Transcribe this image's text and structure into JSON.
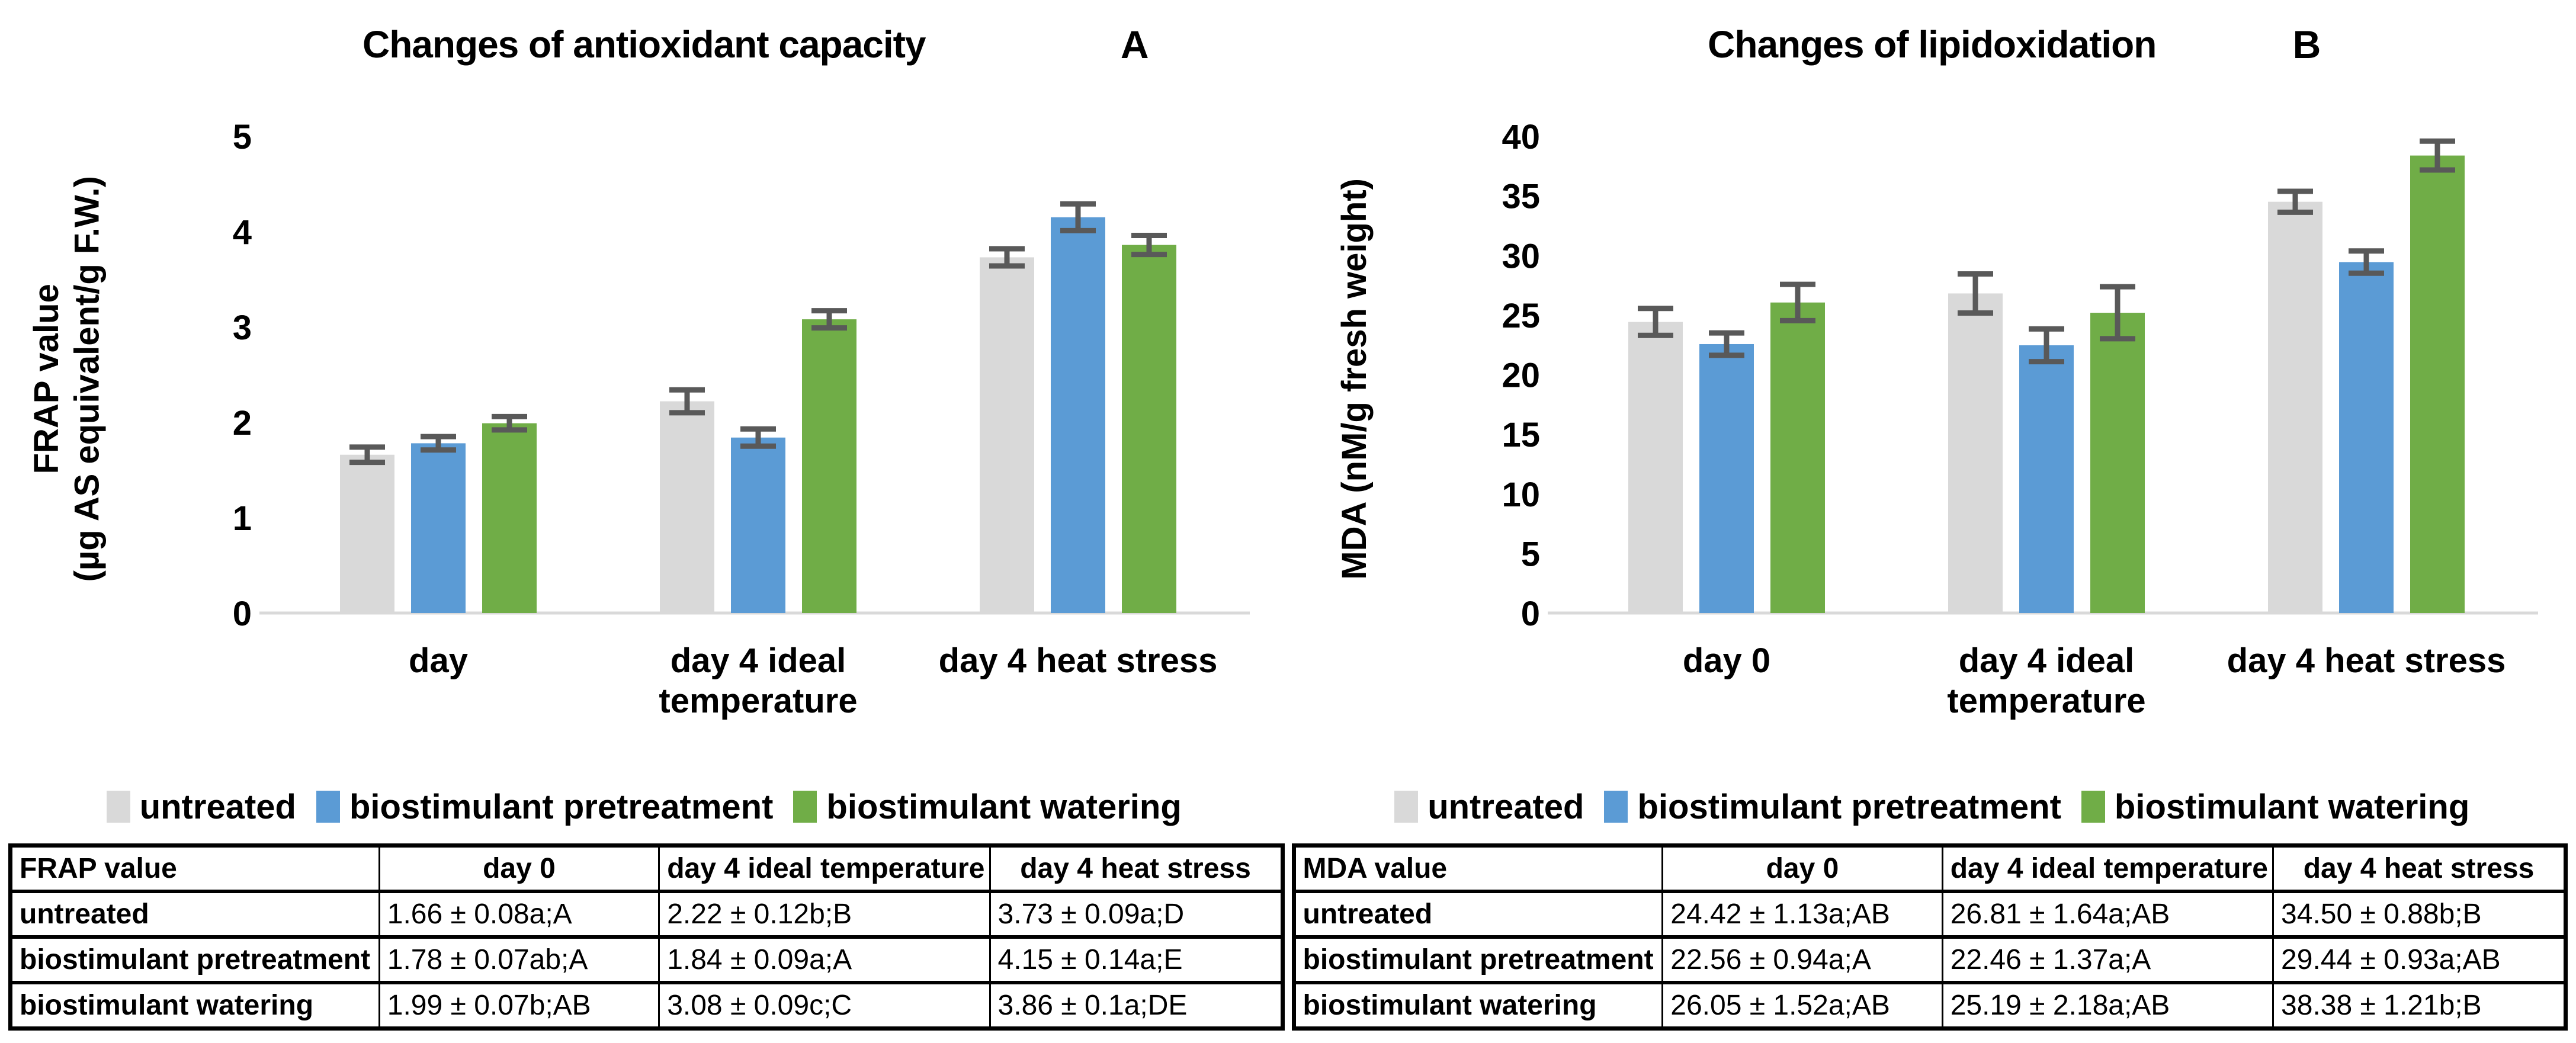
{
  "colors": {
    "untreated": "#d9d9d9",
    "biostimulant_pretreatment": "#5b9bd5",
    "biostimulant_watering": "#70ad47",
    "error_bar": "#595959",
    "axis_line": "#d9d9d9",
    "text": "#000000",
    "table_border": "#000000"
  },
  "legend": {
    "items": [
      {
        "label": "untreated",
        "color": "#d9d9d9"
      },
      {
        "label": "biostimulant pretreatment",
        "color": "#5b9bd5"
      },
      {
        "label": "biostimulant watering",
        "color": "#70ad47"
      }
    ]
  },
  "chart_data": [
    {
      "type": "bar",
      "title": "Changes of antioxidant capacity",
      "panel_letter": "A",
      "ylabel_line1": "FRAP value",
      "ylabel_line2": "(µg AS equivalent/g F.W.)",
      "categories": [
        "day",
        "day 4 ideal temperature",
        "day 4 heat stress"
      ],
      "category_lines": [
        [
          "day"
        ],
        [
          "day 4 ideal",
          "temperature"
        ],
        [
          "day 4 heat stress"
        ]
      ],
      "ylim": [
        0,
        5
      ],
      "ytick_step": 1,
      "grid": false,
      "legend_position": "bottom",
      "series": [
        {
          "name": "untreated",
          "color": "#d9d9d9",
          "values": [
            1.66,
            2.22,
            3.73
          ],
          "errors": [
            0.08,
            0.12,
            0.09
          ]
        },
        {
          "name": "biostimulant pretreatment",
          "color": "#5b9bd5",
          "values": [
            1.78,
            1.84,
            4.15
          ],
          "errors": [
            0.07,
            0.09,
            0.14
          ]
        },
        {
          "name": "biostimulant watering",
          "color": "#70ad47",
          "values": [
            1.99,
            3.08,
            3.86
          ],
          "errors": [
            0.07,
            0.09,
            0.1
          ]
        }
      ]
    },
    {
      "type": "bar",
      "title": "Changes of lipidoxidation",
      "panel_letter": "B",
      "ylabel_line1": "MDA (nM/g fresh weight)",
      "ylabel_line2": "",
      "categories": [
        "day 0",
        "day 4 ideal temperature",
        "day 4 heat stress"
      ],
      "category_lines": [
        [
          "day 0"
        ],
        [
          "day 4 ideal",
          "temperature"
        ],
        [
          "day 4 heat stress"
        ]
      ],
      "ylim": [
        0,
        40
      ],
      "ytick_step": 5,
      "grid": false,
      "legend_position": "bottom",
      "series": [
        {
          "name": "untreated",
          "color": "#d9d9d9",
          "values": [
            24.42,
            26.81,
            34.5
          ],
          "errors": [
            1.13,
            1.64,
            0.88
          ]
        },
        {
          "name": "biostimulant pretreatment",
          "color": "#5b9bd5",
          "values": [
            22.56,
            22.46,
            29.44
          ],
          "errors": [
            0.94,
            1.37,
            0.93
          ]
        },
        {
          "name": "biostimulant watering",
          "color": "#70ad47",
          "values": [
            26.05,
            25.19,
            38.38
          ],
          "errors": [
            1.52,
            2.18,
            1.21
          ]
        }
      ]
    }
  ],
  "tables": [
    {
      "name": "frap-table",
      "header": [
        "FRAP value",
        "day 0",
        "day 4 ideal temperature",
        "day 4 heat stress"
      ],
      "rows": [
        [
          "untreated",
          "1.66 ± 0.08a;A",
          "2.22 ± 0.12b;B",
          "3.73 ± 0.09a;D"
        ],
        [
          "biostimulant pretreatment",
          "1.78 ± 0.07ab;A",
          "1.84 ± 0.09a;A",
          "4.15 ± 0.14a;E"
        ],
        [
          "biostimulant watering",
          "1.99 ± 0.07b;AB",
          "3.08 ± 0.09c;C",
          "3.86 ± 0.1a;DE"
        ]
      ]
    },
    {
      "name": "mda-table",
      "header": [
        "MDA value",
        "day 0",
        "day 4 ideal temperature",
        "day 4 heat stress"
      ],
      "rows": [
        [
          "untreated",
          "24.42 ± 1.13a;AB",
          "26.81 ± 1.64a;AB",
          "34.50 ± 0.88b;B"
        ],
        [
          "biostimulant pretreatment",
          "22.56 ± 0.94a;A",
          "22.46 ± 1.37a;A",
          "29.44 ± 0.93a;AB"
        ],
        [
          "biostimulant watering",
          "26.05 ± 1.52a;AB",
          "25.19 ± 2.18a;AB",
          "38.38 ± 1.21b;B"
        ]
      ]
    }
  ]
}
